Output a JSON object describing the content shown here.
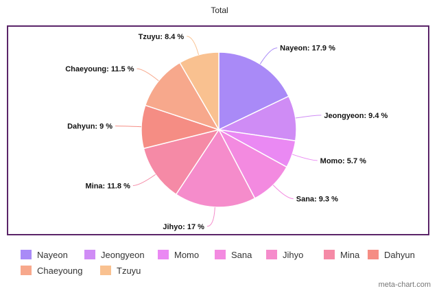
{
  "chart_data": {
    "type": "pie",
    "title": "Total",
    "slices": [
      {
        "name": "Nayeon",
        "value": 17.9,
        "label": "Nayeon: 17.9 %",
        "color": "#a98af7"
      },
      {
        "name": "Jeongyeon",
        "value": 9.4,
        "label": "Jeongyeon: 9.4 %",
        "color": "#cf8cf5"
      },
      {
        "name": "Momo",
        "value": 5.7,
        "label": "Momo: 5.7 %",
        "color": "#ea89f3"
      },
      {
        "name": "Sana",
        "value": 9.3,
        "label": "Sana: 9.3 %",
        "color": "#f38ae0"
      },
      {
        "name": "Jihyo",
        "value": 17.0,
        "label": "Jihyo: 17 %",
        "color": "#f58ccb"
      },
      {
        "name": "Mina",
        "value": 11.8,
        "label": "Mina: 11.8 %",
        "color": "#f58aa6"
      },
      {
        "name": "Dahyun",
        "value": 9.0,
        "label": "Dahyun: 9 %",
        "color": "#f58d84"
      },
      {
        "name": "Chaeyoung",
        "value": 11.5,
        "label": "Chaeyoung: 11.5 %",
        "color": "#f7a88c"
      },
      {
        "name": "Tzuyu",
        "value": 8.4,
        "label": "Tzuyu: 8.4 %",
        "color": "#f9c190"
      }
    ],
    "legend_position": "bottom"
  },
  "watermark": "meta-chart.com",
  "frame_color": "#5a2468"
}
